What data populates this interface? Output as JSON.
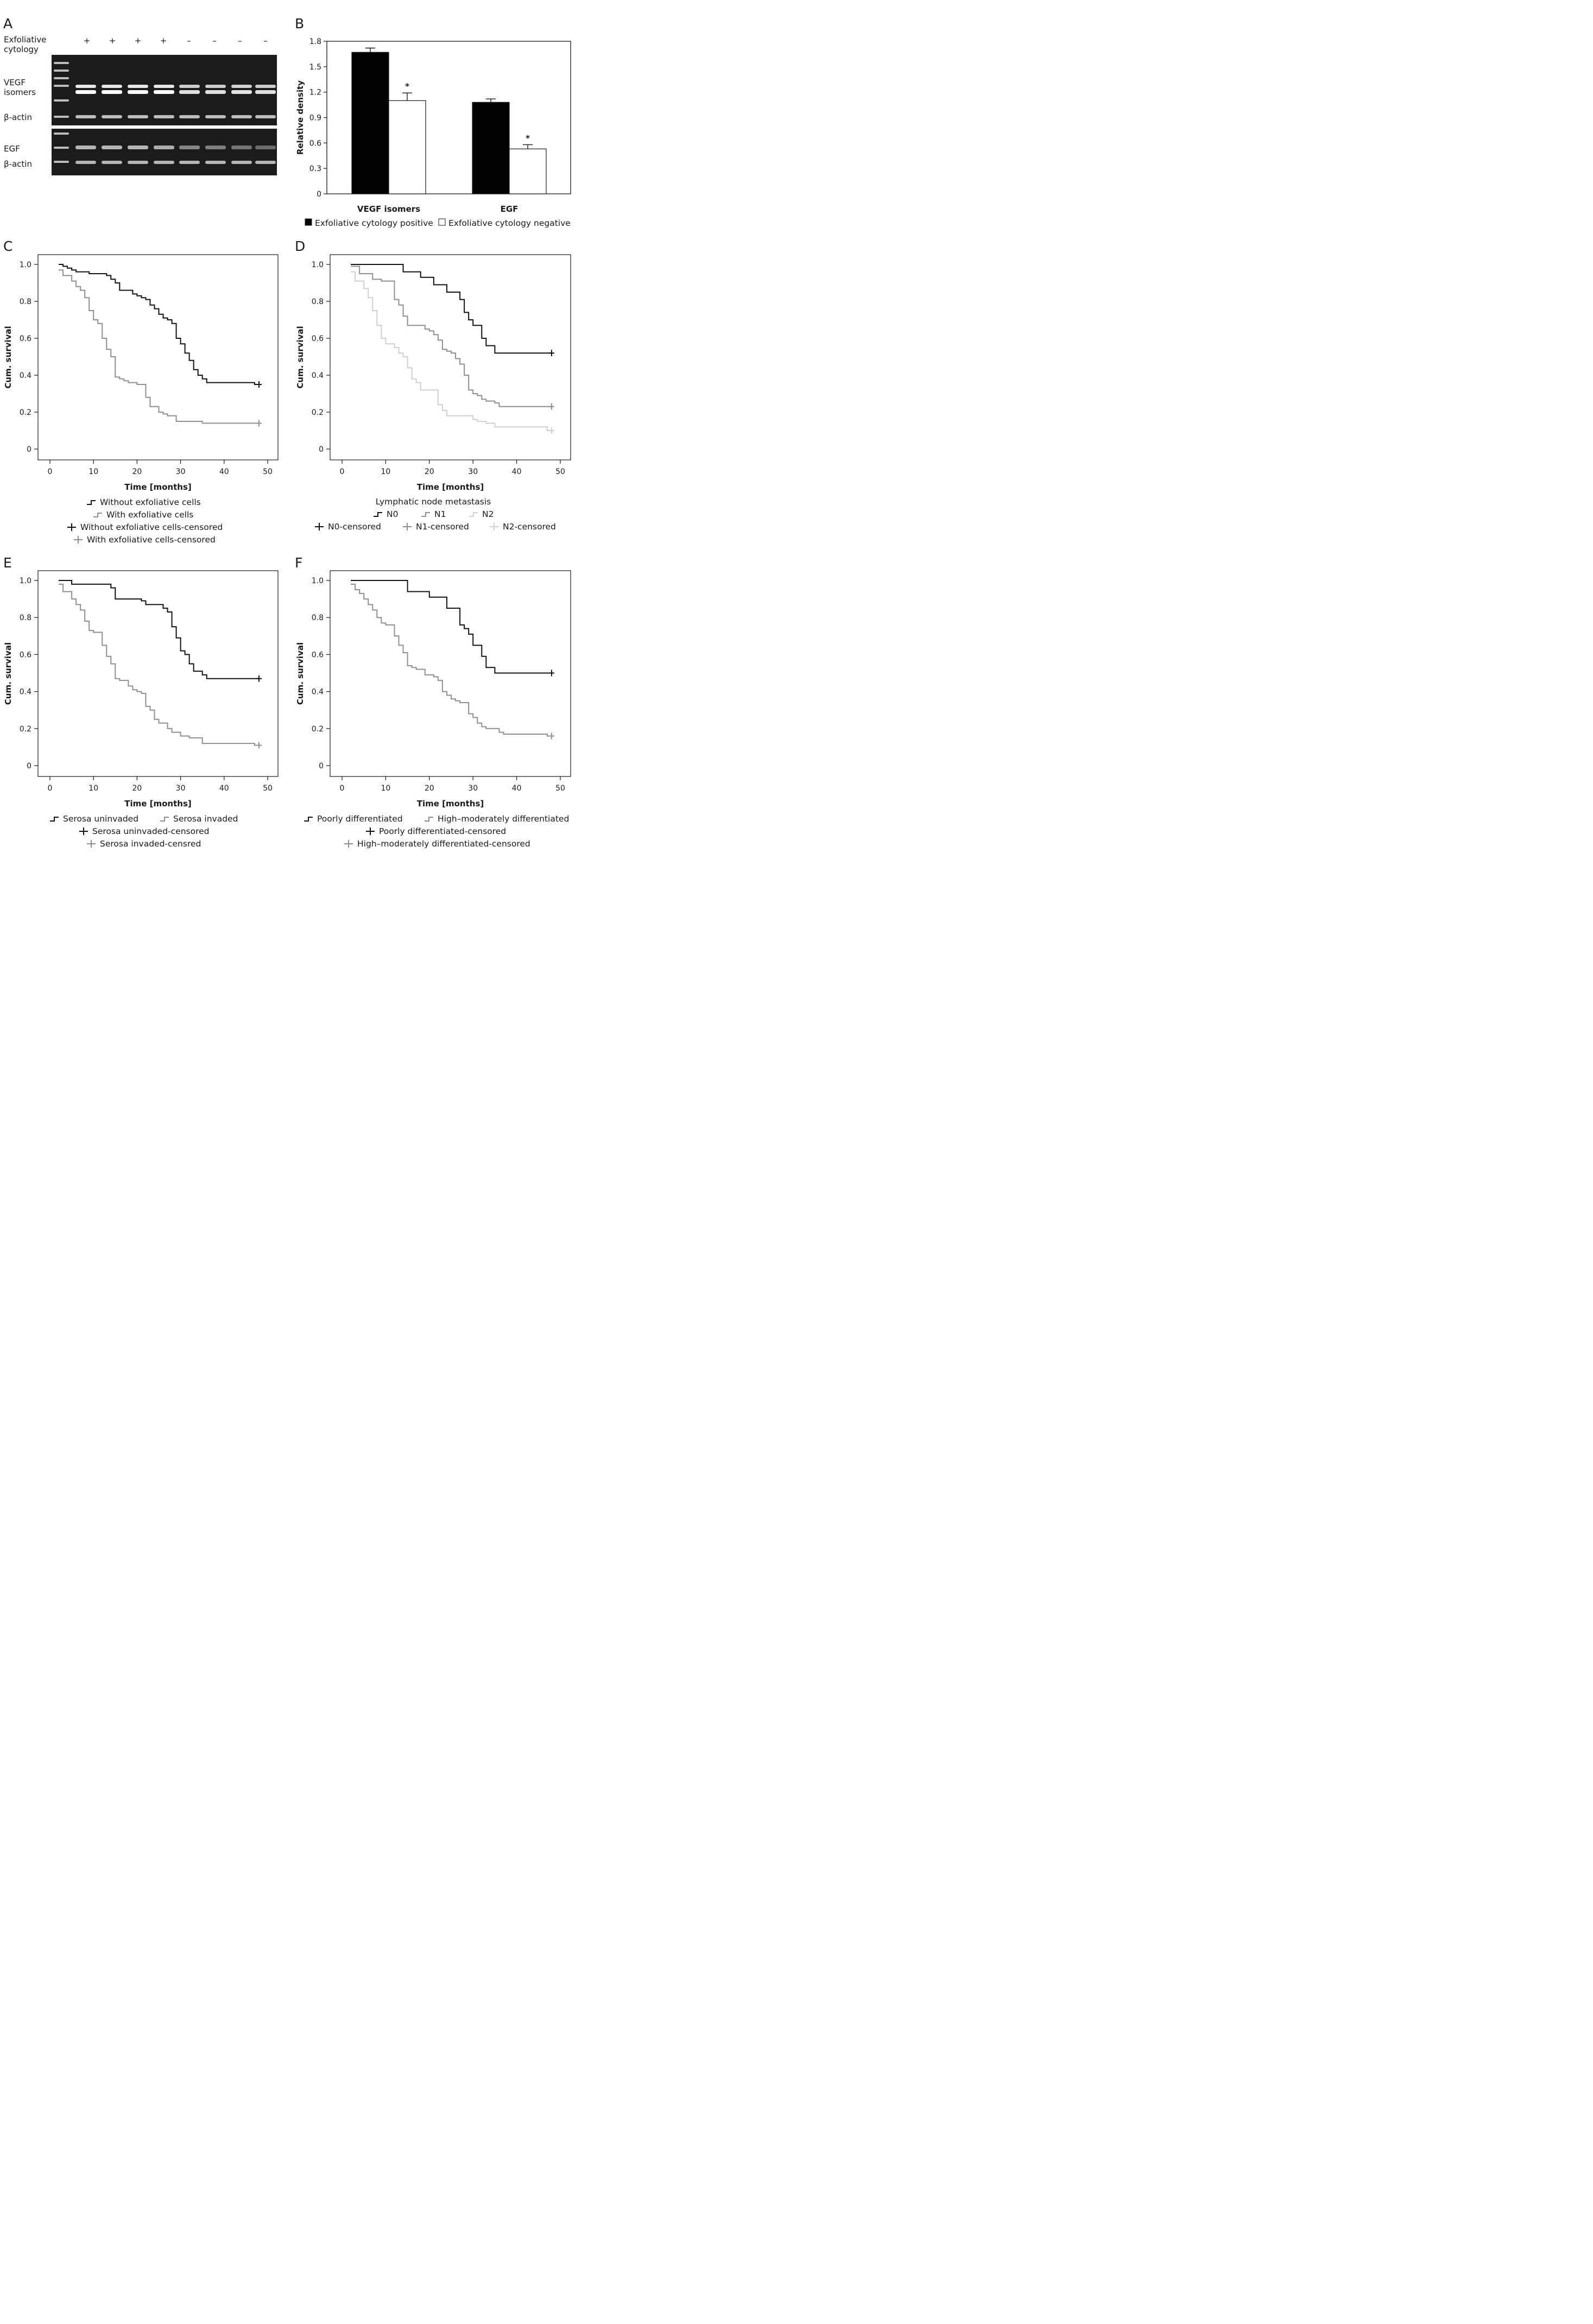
{
  "panels": {
    "a": "A",
    "b": "B",
    "c": "C",
    "d": "D",
    "e": "E",
    "f": "F"
  },
  "gel": {
    "row_label_line1": "Exfoliative",
    "row_label_line2": "cytology",
    "signs": [
      "+",
      "+",
      "+",
      "+",
      "–",
      "–",
      "–",
      "–"
    ],
    "vegf_line1": "VEGF",
    "vegf_line2": "isomers",
    "beta_actin_1": "β-actin",
    "egf": "EGF",
    "beta_actin_2": "β-actin",
    "vegf_intensity": [
      1,
      1,
      1,
      1,
      0.7,
      0.7,
      0.75,
      0.7
    ],
    "egf_intensity": [
      0.85,
      0.85,
      0.85,
      0.8,
      0.6,
      0.55,
      0.5,
      0.45
    ]
  },
  "chart_data": [
    {
      "id": "B",
      "type": "bar",
      "categories": [
        "VEGF isomers",
        "EGF"
      ],
      "series": [
        {
          "name": "Exfoliative cytology positive",
          "values": [
            1.67,
            1.08
          ],
          "errors": [
            0.05,
            0.04
          ],
          "color": "#000000"
        },
        {
          "name": "Exfoliative cytology negative",
          "values": [
            1.1,
            0.53
          ],
          "errors": [
            0.09,
            0.05
          ],
          "color": "#ffffff"
        }
      ],
      "significance": [
        "*",
        "*"
      ],
      "ylabel": "Relative density",
      "ylim": [
        0,
        1.8
      ],
      "yticks": [
        "0",
        "0.3",
        "0.6",
        "0.9",
        "1.2",
        "1.5",
        "1.8"
      ]
    },
    {
      "id": "C",
      "type": "line",
      "xlabel": "Time [months]",
      "ylabel": "Cum. survival",
      "xticks": [
        "0",
        "10",
        "20",
        "30",
        "40",
        "50"
      ],
      "yticks": [
        "0",
        "0.2",
        "0.4",
        "0.6",
        "0.8",
        "1.0"
      ],
      "legend_title": "",
      "legend": [
        "Without exfoliative cells",
        "With exfoliative cells",
        "Without exfoliative cells-censored",
        "With exfoliative cells-censored"
      ],
      "series": [
        {
          "color": "#111111",
          "points": [
            [
              2,
              1.0
            ],
            [
              3,
              0.99
            ],
            [
              4,
              0.98
            ],
            [
              5,
              0.97
            ],
            [
              6,
              0.96
            ],
            [
              9,
              0.95
            ],
            [
              13,
              0.94
            ],
            [
              14,
              0.92
            ],
            [
              15,
              0.9
            ],
            [
              16,
              0.86
            ],
            [
              18,
              0.86
            ],
            [
              19,
              0.84
            ],
            [
              20,
              0.83
            ],
            [
              21,
              0.82
            ],
            [
              22,
              0.81
            ],
            [
              23,
              0.78
            ],
            [
              24,
              0.76
            ],
            [
              25,
              0.73
            ],
            [
              26,
              0.71
            ],
            [
              27,
              0.7
            ],
            [
              28,
              0.68
            ],
            [
              29,
              0.6
            ],
            [
              30,
              0.57
            ],
            [
              31,
              0.52
            ],
            [
              32,
              0.48
            ],
            [
              33,
              0.43
            ],
            [
              34,
              0.4
            ],
            [
              35,
              0.38
            ],
            [
              36,
              0.36
            ],
            [
              47,
              0.35
            ],
            [
              48,
              0.35
            ]
          ]
        },
        {
          "color": "#8f8f8f",
          "points": [
            [
              2,
              0.97
            ],
            [
              3,
              0.94
            ],
            [
              5,
              0.91
            ],
            [
              6,
              0.88
            ],
            [
              7,
              0.86
            ],
            [
              8,
              0.82
            ],
            [
              9,
              0.75
            ],
            [
              10,
              0.7
            ],
            [
              11,
              0.68
            ],
            [
              12,
              0.6
            ],
            [
              13,
              0.54
            ],
            [
              14,
              0.5
            ],
            [
              15,
              0.39
            ],
            [
              16,
              0.38
            ],
            [
              17,
              0.37
            ],
            [
              18,
              0.36
            ],
            [
              20,
              0.35
            ],
            [
              22,
              0.28
            ],
            [
              23,
              0.23
            ],
            [
              25,
              0.2
            ],
            [
              26,
              0.19
            ],
            [
              27,
              0.18
            ],
            [
              29,
              0.15
            ],
            [
              35,
              0.14
            ],
            [
              48,
              0.14
            ]
          ]
        }
      ]
    },
    {
      "id": "D",
      "type": "line",
      "xlabel": "Time [months]",
      "ylabel": "Cum. survival",
      "xticks": [
        "0",
        "10",
        "20",
        "30",
        "40",
        "50"
      ],
      "yticks": [
        "0",
        "0.2",
        "0.4",
        "0.6",
        "0.8",
        "1.0"
      ],
      "legend_title": "Lymphatic node metastasis",
      "legend": [
        "N0",
        "N1",
        "N2",
        "N0-censored",
        "N1-censored",
        "N2-censored"
      ],
      "series": [
        {
          "color": "#111111",
          "points": [
            [
              2,
              1.0
            ],
            [
              14,
              0.96
            ],
            [
              18,
              0.93
            ],
            [
              21,
              0.89
            ],
            [
              24,
              0.85
            ],
            [
              27,
              0.81
            ],
            [
              28,
              0.74
            ],
            [
              29,
              0.7
            ],
            [
              30,
              0.67
            ],
            [
              32,
              0.6
            ],
            [
              33,
              0.56
            ],
            [
              35,
              0.52
            ],
            [
              48,
              0.52
            ]
          ]
        },
        {
          "color": "#8f8f8f",
          "points": [
            [
              2,
              0.99
            ],
            [
              4,
              0.95
            ],
            [
              7,
              0.92
            ],
            [
              9,
              0.91
            ],
            [
              12,
              0.81
            ],
            [
              13,
              0.78
            ],
            [
              14,
              0.72
            ],
            [
              15,
              0.67
            ],
            [
              19,
              0.65
            ],
            [
              20,
              0.64
            ],
            [
              21,
              0.62
            ],
            [
              22,
              0.59
            ],
            [
              23,
              0.54
            ],
            [
              24,
              0.53
            ],
            [
              25,
              0.52
            ],
            [
              26,
              0.49
            ],
            [
              27,
              0.46
            ],
            [
              28,
              0.4
            ],
            [
              29,
              0.32
            ],
            [
              30,
              0.3
            ],
            [
              31,
              0.29
            ],
            [
              32,
              0.27
            ],
            [
              33,
              0.26
            ],
            [
              35,
              0.25
            ],
            [
              36,
              0.23
            ],
            [
              48,
              0.23
            ]
          ]
        },
        {
          "color": "#cfcfcf",
          "points": [
            [
              2,
              0.96
            ],
            [
              3,
              0.91
            ],
            [
              5,
              0.87
            ],
            [
              6,
              0.82
            ],
            [
              7,
              0.75
            ],
            [
              8,
              0.67
            ],
            [
              9,
              0.6
            ],
            [
              10,
              0.57
            ],
            [
              12,
              0.55
            ],
            [
              13,
              0.52
            ],
            [
              14,
              0.5
            ],
            [
              15,
              0.44
            ],
            [
              16,
              0.38
            ],
            [
              17,
              0.36
            ],
            [
              18,
              0.32
            ],
            [
              21,
              0.32
            ],
            [
              22,
              0.24
            ],
            [
              23,
              0.21
            ],
            [
              24,
              0.18
            ],
            [
              30,
              0.16
            ],
            [
              31,
              0.15
            ],
            [
              33,
              0.14
            ],
            [
              35,
              0.12
            ],
            [
              47,
              0.1
            ],
            [
              48,
              0.1
            ]
          ]
        }
      ]
    },
    {
      "id": "E",
      "type": "line",
      "xlabel": "Time [months]",
      "ylabel": "Cum. survival",
      "xticks": [
        "0",
        "10",
        "20",
        "30",
        "40",
        "50"
      ],
      "yticks": [
        "0",
        "0.2",
        "0.4",
        "0.6",
        "0.8",
        "1.0"
      ],
      "legend_title": "",
      "legend": [
        "Serosa uninvaded",
        "Serosa invaded",
        "Serosa uninvaded-censored",
        "Serosa invaded-censred"
      ],
      "series": [
        {
          "color": "#111111",
          "points": [
            [
              2,
              1.0
            ],
            [
              5,
              0.98
            ],
            [
              14,
              0.96
            ],
            [
              15,
              0.9
            ],
            [
              21,
              0.89
            ],
            [
              22,
              0.87
            ],
            [
              26,
              0.85
            ],
            [
              27,
              0.83
            ],
            [
              28,
              0.75
            ],
            [
              29,
              0.69
            ],
            [
              30,
              0.62
            ],
            [
              31,
              0.6
            ],
            [
              32,
              0.55
            ],
            [
              33,
              0.51
            ],
            [
              35,
              0.49
            ],
            [
              36,
              0.47
            ],
            [
              48,
              0.47
            ]
          ]
        },
        {
          "color": "#8f8f8f",
          "points": [
            [
              2,
              0.98
            ],
            [
              3,
              0.94
            ],
            [
              5,
              0.9
            ],
            [
              6,
              0.87
            ],
            [
              7,
              0.84
            ],
            [
              8,
              0.78
            ],
            [
              9,
              0.73
            ],
            [
              10,
              0.72
            ],
            [
              12,
              0.65
            ],
            [
              13,
              0.59
            ],
            [
              14,
              0.55
            ],
            [
              15,
              0.47
            ],
            [
              16,
              0.46
            ],
            [
              18,
              0.43
            ],
            [
              19,
              0.41
            ],
            [
              20,
              0.4
            ],
            [
              21,
              0.39
            ],
            [
              22,
              0.32
            ],
            [
              23,
              0.3
            ],
            [
              24,
              0.25
            ],
            [
              25,
              0.23
            ],
            [
              27,
              0.2
            ],
            [
              28,
              0.18
            ],
            [
              30,
              0.16
            ],
            [
              32,
              0.15
            ],
            [
              35,
              0.12
            ],
            [
              47,
              0.11
            ],
            [
              48,
              0.11
            ]
          ]
        }
      ]
    },
    {
      "id": "F",
      "type": "line",
      "xlabel": "Time [months]",
      "ylabel": "Cum. survival",
      "xticks": [
        "0",
        "10",
        "20",
        "30",
        "40",
        "50"
      ],
      "yticks": [
        "0",
        "0.2",
        "0.4",
        "0.6",
        "0.8",
        "1.0"
      ],
      "legend_title": "",
      "legend": [
        "Poorly differentiated",
        "High–moderately differentiated",
        "Poorly differentiated-censored",
        "High–moderately differentiated-censored"
      ],
      "series": [
        {
          "color": "#111111",
          "points": [
            [
              2,
              1.0
            ],
            [
              15,
              0.94
            ],
            [
              20,
              0.91
            ],
            [
              24,
              0.85
            ],
            [
              27,
              0.76
            ],
            [
              28,
              0.74
            ],
            [
              29,
              0.71
            ],
            [
              30,
              0.65
            ],
            [
              32,
              0.59
            ],
            [
              33,
              0.53
            ],
            [
              35,
              0.5
            ],
            [
              48,
              0.5
            ]
          ]
        },
        {
          "color": "#8f8f8f",
          "points": [
            [
              2,
              0.98
            ],
            [
              3,
              0.95
            ],
            [
              4,
              0.93
            ],
            [
              5,
              0.9
            ],
            [
              6,
              0.87
            ],
            [
              7,
              0.84
            ],
            [
              8,
              0.8
            ],
            [
              9,
              0.77
            ],
            [
              10,
              0.76
            ],
            [
              12,
              0.7
            ],
            [
              13,
              0.65
            ],
            [
              14,
              0.61
            ],
            [
              15,
              0.54
            ],
            [
              16,
              0.53
            ],
            [
              17,
              0.52
            ],
            [
              19,
              0.49
            ],
            [
              21,
              0.48
            ],
            [
              22,
              0.46
            ],
            [
              23,
              0.4
            ],
            [
              24,
              0.38
            ],
            [
              25,
              0.36
            ],
            [
              26,
              0.35
            ],
            [
              27,
              0.34
            ],
            [
              29,
              0.28
            ],
            [
              30,
              0.26
            ],
            [
              31,
              0.23
            ],
            [
              32,
              0.21
            ],
            [
              33,
              0.2
            ],
            [
              36,
              0.18
            ],
            [
              37,
              0.17
            ],
            [
              47,
              0.16
            ],
            [
              48,
              0.16
            ]
          ]
        }
      ]
    }
  ]
}
